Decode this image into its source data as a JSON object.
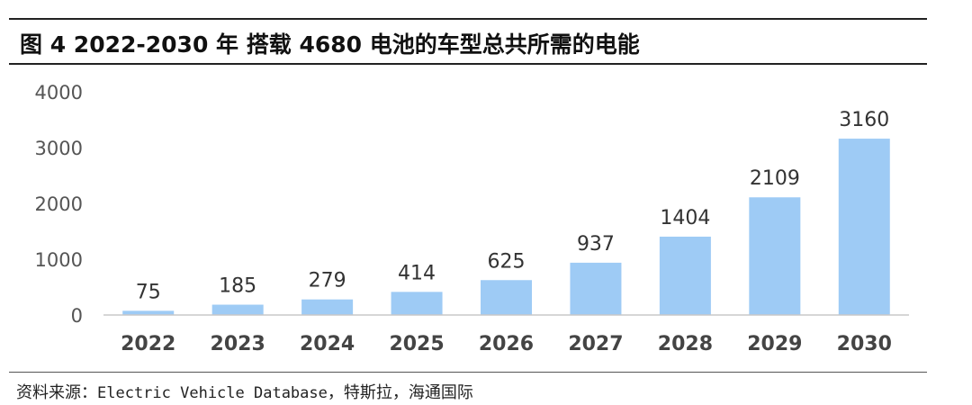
{
  "title": "图 4 2022-2030 年 搭载 4680 电池的车型总共所需的电能",
  "source": {
    "prefix": "资料来源：",
    "db": "Electric Vehicle Database",
    "suffix": "，特斯拉，海通国际"
  },
  "chart_data": {
    "type": "bar",
    "title": "图 4 2022-2030 年 搭载 4680 电池的车型总共所需的电能",
    "categories": [
      "2022",
      "2023",
      "2024",
      "2025",
      "2026",
      "2027",
      "2028",
      "2029",
      "2030"
    ],
    "values": [
      75,
      185,
      279,
      414,
      625,
      937,
      1404,
      2109,
      3160
    ],
    "xlabel": "",
    "ylabel": "",
    "ylim": [
      0,
      4000
    ],
    "yticks": [
      0,
      1000,
      2000,
      3000,
      4000
    ],
    "grid": false,
    "data_labels": true,
    "bar_color": "#9ecbf5",
    "axis_color": "#c8c8c8"
  }
}
